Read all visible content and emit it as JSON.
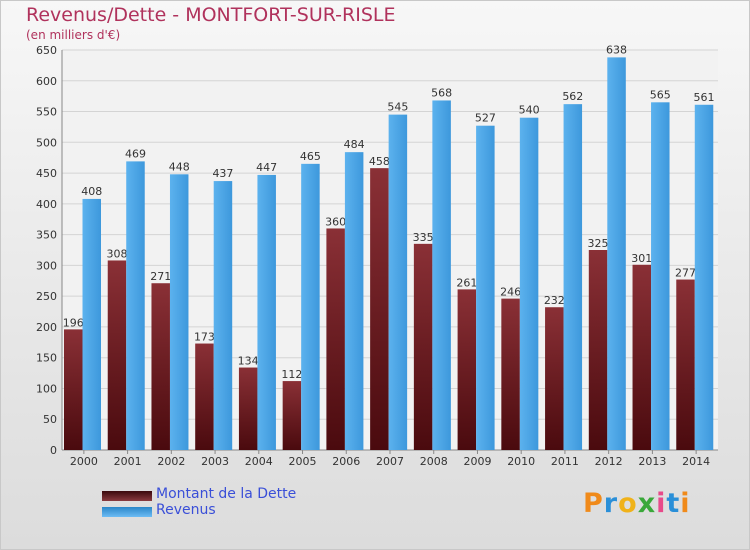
{
  "title": "Revenus/Dette - MONTFORT-SUR-RISLE",
  "subtitle": "(en milliers d'€)",
  "colors": {
    "title": "#b0325c",
    "dette": "#7a2a2e",
    "revenus": "#4da6e8",
    "legend_text": "#3a4fd8"
  },
  "legend": [
    {
      "label": "Montant de la Dette",
      "color": "#6b1a1e"
    },
    {
      "label": "Revenus",
      "color": "#4da6e8"
    }
  ],
  "logo": {
    "text": "Proxiti"
  },
  "chart_data": {
    "type": "bar",
    "title": "Revenus/Dette - MONTFORT-SUR-RISLE",
    "subtitle": "(en milliers d'€)",
    "categories": [
      "2000",
      "2001",
      "2002",
      "2003",
      "2004",
      "2005",
      "2006",
      "2007",
      "2008",
      "2009",
      "2010",
      "2011",
      "2012",
      "2013",
      "2014"
    ],
    "series": [
      {
        "name": "Montant de la Dette",
        "values": [
          196,
          308,
          271,
          173,
          134,
          112,
          360,
          458,
          335,
          261,
          246,
          232,
          325,
          301,
          277
        ]
      },
      {
        "name": "Revenus",
        "values": [
          408,
          469,
          448,
          437,
          447,
          465,
          484,
          545,
          568,
          527,
          540,
          562,
          638,
          565,
          561
        ]
      }
    ],
    "ylim": [
      0,
      650
    ],
    "yticks": [
      0,
      50,
      100,
      150,
      200,
      250,
      300,
      350,
      400,
      450,
      500,
      550,
      600,
      650
    ],
    "grid": true,
    "legend_position": "bottom-left",
    "xlabel": "",
    "ylabel": ""
  }
}
